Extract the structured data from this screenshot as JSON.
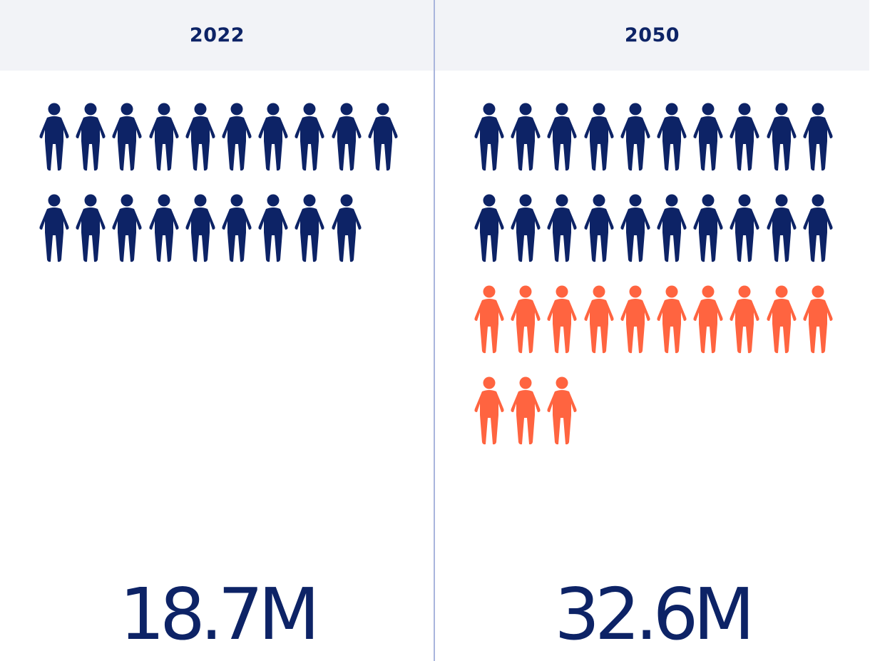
{
  "chart_data": {
    "type": "pictogram",
    "colors": {
      "navy": "#0d2366",
      "orange": "#ff6440",
      "header_bg": "#f2f3f7",
      "divider": "#a9b5dc"
    },
    "icon_name": "person-icon",
    "icons_per_row": 10,
    "panels": [
      {
        "year": "2022",
        "total": "18.7M",
        "icon_counts": {
          "navy": 19,
          "orange": 0
        }
      },
      {
        "year": "2050",
        "total": "32.6M",
        "icon_counts": {
          "navy": 20,
          "orange": 13
        }
      }
    ]
  }
}
